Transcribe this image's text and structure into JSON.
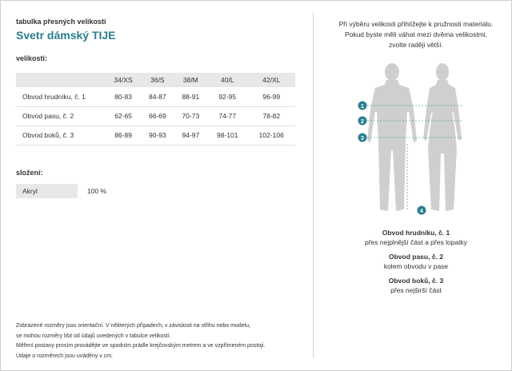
{
  "header": {
    "subtitle": "tabulka přesných velikostí",
    "title": "Svetr dámský TIJE"
  },
  "sizes_section": {
    "label": "velikosti:",
    "columns": [
      "34/XS",
      "36/S",
      "38/M",
      "40/L",
      "42/XL"
    ],
    "rows": [
      {
        "label": "Obvod hrudníku, č. 1",
        "values": [
          "80-83",
          "84-87",
          "88-91",
          "92-95",
          "96-99"
        ]
      },
      {
        "label": "Obvod pasu, č. 2",
        "values": [
          "62-65",
          "66-69",
          "70-73",
          "74-77",
          "78-82"
        ]
      },
      {
        "label": "Obvod boků, č. 3",
        "values": [
          "86-89",
          "90-93",
          "94-97",
          "98-101",
          "102-106"
        ]
      }
    ]
  },
  "composition": {
    "label": "složení:",
    "material": "Akryl",
    "percent": "100 %"
  },
  "notes": [
    "Zobrazené rozměry jsou orientační. V některých případech, v závislosti na střihu nebo modelu,",
    "se mohou rozměry lišit od údajů uvedených v tabulce velikostí.",
    "Měření postavy prosím provádějte ve spodním prádle krejčovským metrem a ve vzpřímeném postoji.",
    "Údaje o rozměrech jsou uváděny v cm."
  ],
  "hint": [
    "Při výběru velikosti přihlížejte k pružnosti materiálu.",
    "Pokud byste měli váhat mezi dvěma velikostmi,",
    "zvolte raději větší."
  ],
  "markers": [
    "1",
    "2",
    "3",
    "4"
  ],
  "legend": [
    {
      "title": "Obvod hrudníku, č. 1",
      "desc": "přes nejplnější část a přes lopatky"
    },
    {
      "title": "Obvod pasu, č. 2",
      "desc": "kolem obvodu v pase"
    },
    {
      "title": "Obvod boků, č. 3",
      "desc": "přes nejširší část"
    }
  ],
  "colors": {
    "accent": "#2a7f8f",
    "silhouette": "#cfcfcf",
    "header_bg": "#e8e8e8"
  }
}
